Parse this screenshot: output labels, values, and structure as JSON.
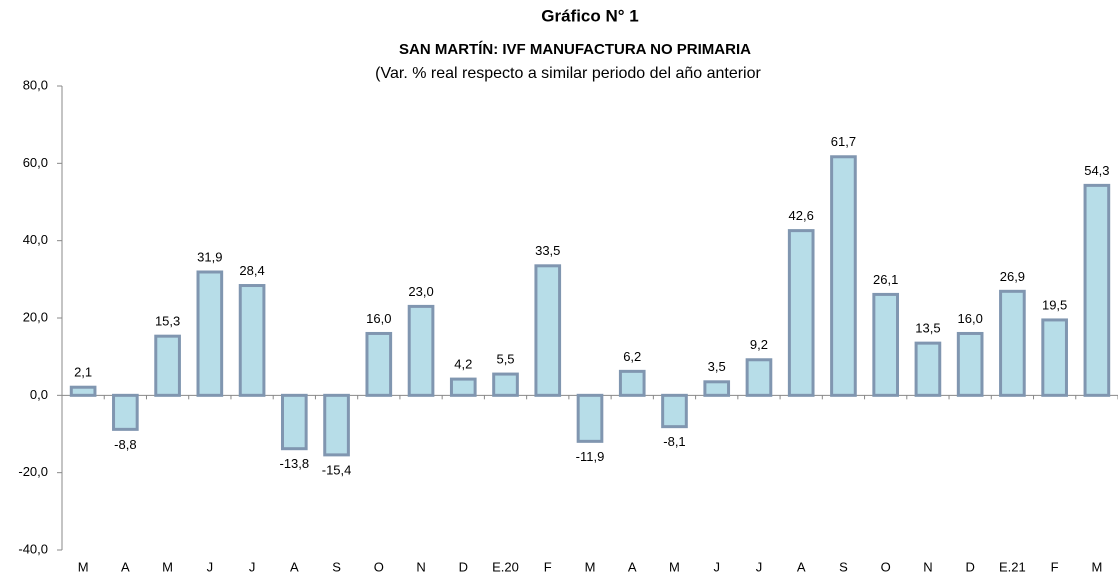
{
  "chart_data": {
    "type": "bar",
    "title": "Gráfico N° 1",
    "subtitle": "SAN MARTÍN: IVF MANUFACTURA  NO PRIMARIA",
    "note": "(Var. % real respecto a similar periodo del año anterior",
    "categories": [
      "M",
      "A",
      "M",
      "J",
      "J",
      "A",
      "S",
      "O",
      "N",
      "D",
      "E.20",
      "F",
      "M",
      "A",
      "M",
      "J",
      "J",
      "A",
      "S",
      "O",
      "N",
      "D",
      "E.21",
      "F",
      "M"
    ],
    "values": [
      2.1,
      -8.8,
      15.3,
      31.9,
      28.4,
      -13.8,
      -15.4,
      16.0,
      23.0,
      4.2,
      5.5,
      33.5,
      -11.9,
      6.2,
      -8.1,
      3.5,
      9.2,
      42.6,
      61.7,
      26.1,
      13.5,
      16.0,
      26.9,
      19.5,
      54.3
    ],
    "value_labels": [
      "2,1",
      "-8,8",
      "15,3",
      "31,9",
      "28,4",
      "-13,8",
      "-15,4",
      "16,0",
      "23,0",
      "4,2",
      "5,5",
      "33,5",
      "-11,9",
      "6,2",
      "-8,1",
      "3,5",
      "9,2",
      "42,6",
      "61,7",
      "26,1",
      "13,5",
      "16,0",
      "26,9",
      "19,5",
      "54,3"
    ],
    "color": "#b7dde8",
    "edge_color": "#8096b0",
    "ylim": [
      -40,
      80
    ],
    "yticks": [
      {
        "value": -40,
        "label": "-40,0"
      },
      {
        "value": -20,
        "label": "-20,0"
      },
      {
        "value": 0,
        "label": "0,0"
      },
      {
        "value": 20,
        "label": "20,0"
      },
      {
        "value": 40,
        "label": "40,0"
      },
      {
        "value": 60,
        "label": "60,0"
      },
      {
        "value": 80,
        "label": "80,0"
      }
    ],
    "grid": false
  }
}
